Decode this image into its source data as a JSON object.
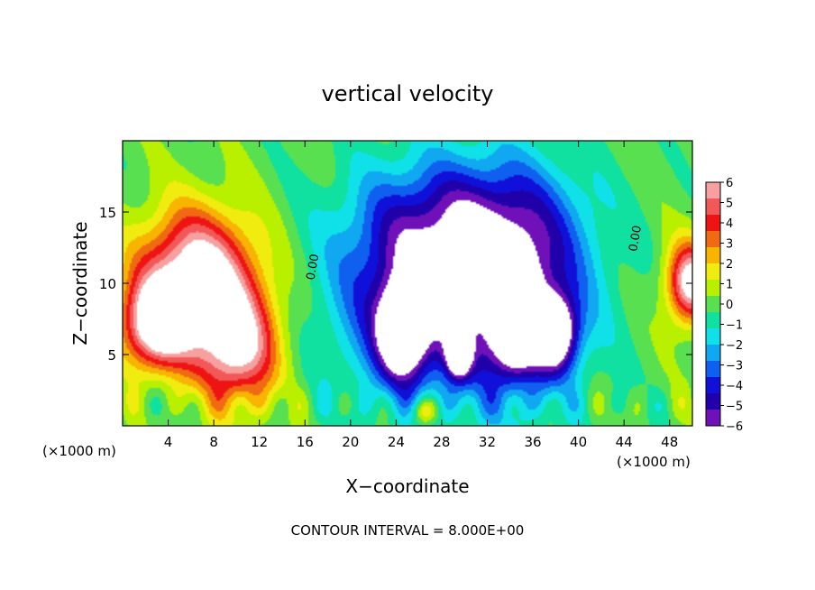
{
  "chart_data": {
    "type": "heatmap",
    "title": "vertical velocity",
    "xlabel": "X−coordinate",
    "ylabel": "Z−coordinate",
    "x_unit_label": "(×1000 m)",
    "y_unit_label": "(×1000 m)",
    "footer": "CONTOUR INTERVAL = 8.000E+00",
    "xlim": [
      0,
      50
    ],
    "ylim": [
      0,
      20
    ],
    "xticks": [
      "4",
      "8",
      "12",
      "16",
      "20",
      "24",
      "28",
      "32",
      "36",
      "40",
      "44",
      "48"
    ],
    "xtick_values": [
      4,
      8,
      12,
      16,
      20,
      24,
      28,
      32,
      36,
      40,
      44,
      48
    ],
    "yticks": [
      "5",
      "10",
      "15"
    ],
    "ytick_values": [
      5,
      10,
      15
    ],
    "contour_labels": [
      {
        "text": "0.00",
        "x": 17.0,
        "z": 11.1
      },
      {
        "text": "0.00",
        "x": 45.3,
        "z": 13.1
      }
    ],
    "colorbar": {
      "labels": [
        "6",
        "5",
        "4",
        "3",
        "2",
        "1",
        "0",
        "−1",
        "−2",
        "−3",
        "−4",
        "−5",
        "−6"
      ],
      "values": [
        6,
        5,
        4,
        3,
        2,
        1,
        0,
        -1,
        -2,
        -3,
        -4,
        -5,
        -6
      ],
      "colors": [
        "#f7a0a0",
        "#f25858",
        "#ee1414",
        "#f06a14",
        "#f8b400",
        "#f0ec10",
        "#b8f000",
        "#58e050",
        "#10e0a0",
        "#10e0e8",
        "#10a8f0",
        "#1060f0",
        "#1010d8",
        "#2000a8",
        "#7010b8"
      ]
    },
    "over_range_color": "#ffffff",
    "under_range_color": "#ffffff",
    "features": [
      {
        "kind": "updraft",
        "x": 6.5,
        "z": 10.5,
        "rx": 5.0,
        "rz": 4.5,
        "w": 7.5
      },
      {
        "kind": "updraft",
        "x": 3.0,
        "z": 7.0,
        "rx": 3.0,
        "rz": 3.0,
        "w": 7.0
      },
      {
        "kind": "updraft",
        "x": 10.0,
        "z": 5.5,
        "rx": 3.5,
        "rz": 4.0,
        "w": 6.5
      },
      {
        "kind": "updraft",
        "x": 49.8,
        "z": 10.0,
        "rx": 2.0,
        "rz": 2.8,
        "w": 7.0
      },
      {
        "kind": "updraft",
        "x": 26.5,
        "z": 1.0,
        "rx": 1.2,
        "rz": 1.0,
        "w": 3.0
      },
      {
        "kind": "downdraft",
        "x": 25.5,
        "z": 9.0,
        "rx": 7.0,
        "rz": 7.0,
        "w": -5.0
      },
      {
        "kind": "downdraft",
        "x": 34.5,
        "z": 9.5,
        "rx": 6.5,
        "rz": 7.5,
        "w": -5.0
      },
      {
        "kind": "downdraft",
        "x": 30.0,
        "z": 14.5,
        "rx": 9.0,
        "rz": 4.5,
        "w": -3.0
      },
      {
        "kind": "downdraft",
        "x": 24.5,
        "z": 6.5,
        "rx": 2.0,
        "rz": 3.0,
        "w": -7.0
      },
      {
        "kind": "downdraft",
        "x": 34.5,
        "z": 7.5,
        "rx": 2.0,
        "rz": 3.5,
        "w": -7.5
      },
      {
        "kind": "downdraft",
        "x": 38.0,
        "z": 6.5,
        "rx": 1.8,
        "rz": 2.5,
        "w": -7.0
      },
      {
        "kind": "downdraft",
        "x": 29.5,
        "z": 5.0,
        "rx": 1.0,
        "rz": 1.5,
        "w": -6.5
      }
    ]
  }
}
